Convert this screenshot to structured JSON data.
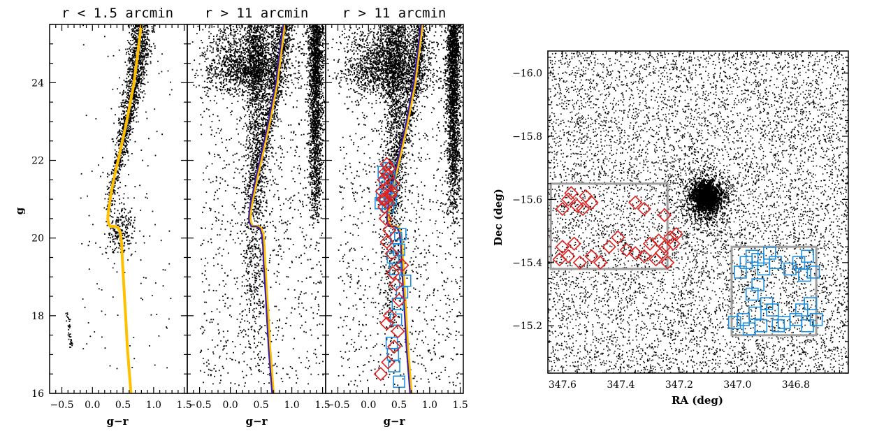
{
  "chart_data": [
    {
      "type": "scatter",
      "panel": "cmd-core",
      "title": "r < 1.5 arcmin",
      "xlabel": "g−r",
      "ylabel": "g",
      "xlim": [
        -0.7,
        1.55
      ],
      "ylim": [
        25.5,
        16
      ],
      "xticks": [
        -0.5,
        0.0,
        0.5,
        1.0,
        1.5
      ],
      "xtick_labels": [
        "−0.5",
        "0.0",
        "0.5",
        "1.0",
        "1.5"
      ],
      "yticks": [
        16,
        18,
        20,
        22,
        24
      ],
      "ytick_labels": [
        "16",
        "18",
        "20",
        "22",
        "24"
      ],
      "series": [
        {
          "name": "stars",
          "marker": "dot",
          "color": "#000000"
        },
        {
          "name": "isochrone",
          "marker": "line",
          "color": "#FFC000",
          "x": [
            0.8,
            0.76,
            0.72,
            0.68,
            0.62,
            0.56,
            0.49,
            0.42,
            0.36,
            0.31,
            0.28,
            0.26,
            0.25,
            0.26,
            0.29,
            0.37,
            0.43,
            0.46,
            0.48,
            0.49,
            0.52,
            0.55,
            0.57,
            0.59,
            0.61,
            0.63
          ],
          "y": [
            25.5,
            25.0,
            24.5,
            24.0,
            23.5,
            23.0,
            22.5,
            22.0,
            21.6,
            21.2,
            20.9,
            20.7,
            20.5,
            20.4,
            20.3,
            20.3,
            20.25,
            20.1,
            19.8,
            19.4,
            18.6,
            17.8,
            17.2,
            16.8,
            16.4,
            16.0
          ]
        }
      ]
    },
    {
      "type": "scatter",
      "panel": "cmd-field",
      "title": "r > 11 arcmin",
      "xlabel": "g−r",
      "xlim": [
        -0.7,
        1.55
      ],
      "ylim": [
        25.5,
        16
      ],
      "xticks": [
        -0.5,
        0.0,
        0.5,
        1.0,
        1.5
      ],
      "xtick_labels": [
        "−0.5",
        "0.0",
        "0.5",
        "1.0",
        "1.5"
      ],
      "yticks": [
        16,
        18,
        20,
        22,
        24
      ],
      "series": [
        {
          "name": "stars",
          "marker": "dot",
          "color": "#000000"
        },
        {
          "name": "isochrone-yellow",
          "marker": "line",
          "color": "#FFC000",
          "x": [
            0.88,
            0.84,
            0.8,
            0.76,
            0.7,
            0.64,
            0.57,
            0.5,
            0.44,
            0.39,
            0.35,
            0.33,
            0.32,
            0.33,
            0.36,
            0.44,
            0.5,
            0.53,
            0.55,
            0.56,
            0.59,
            0.62,
            0.64,
            0.66,
            0.68,
            0.7
          ],
          "y": [
            25.5,
            25.0,
            24.5,
            24.0,
            23.5,
            23.0,
            22.5,
            22.0,
            21.6,
            21.2,
            20.9,
            20.7,
            20.5,
            20.4,
            20.3,
            20.3,
            20.25,
            20.1,
            19.8,
            19.4,
            18.6,
            17.8,
            17.2,
            16.8,
            16.4,
            16.0
          ]
        },
        {
          "name": "isochrone-blue",
          "marker": "line",
          "color": "#3C1FA8",
          "x": [
            0.86,
            0.82,
            0.78,
            0.74,
            0.68,
            0.62,
            0.55,
            0.48,
            0.42,
            0.37,
            0.33,
            0.31,
            0.3,
            0.31,
            0.34,
            0.42,
            0.48,
            0.51,
            0.53,
            0.54,
            0.57,
            0.6,
            0.62,
            0.64,
            0.66,
            0.68
          ],
          "y": [
            25.5,
            25.0,
            24.5,
            24.0,
            23.5,
            23.0,
            22.5,
            22.0,
            21.6,
            21.2,
            20.9,
            20.7,
            20.5,
            20.4,
            20.3,
            20.3,
            20.25,
            20.1,
            19.8,
            19.4,
            18.6,
            17.8,
            17.2,
            16.8,
            16.4,
            16.0
          ]
        }
      ]
    },
    {
      "type": "scatter",
      "panel": "cmd-selected",
      "title": "r > 11 arcmin",
      "xlabel": "g−r",
      "xlim": [
        -0.7,
        1.55
      ],
      "ylim": [
        25.5,
        16
      ],
      "xticks": [
        -0.5,
        0.0,
        0.5,
        1.0,
        1.5
      ],
      "xtick_labels": [
        "−0.5",
        "0.0",
        "0.5",
        "1.0",
        "1.5"
      ],
      "yticks": [
        16,
        18,
        20,
        22,
        24
      ],
      "series": [
        {
          "name": "stars",
          "marker": "dot",
          "color": "#000000"
        },
        {
          "name": "isochrone-yellow",
          "marker": "line",
          "color": "#FFC000"
        },
        {
          "name": "isochrone-blue",
          "marker": "line",
          "color": "#3C1FA8"
        },
        {
          "name": "blue-squares",
          "marker": "square",
          "color": "#1F8FE0",
          "x": [
            0.5,
            0.42,
            0.4,
            0.38,
            0.45,
            0.48,
            0.55,
            0.6,
            0.44,
            0.4,
            0.5,
            0.45,
            0.52,
            0.2,
            0.22,
            0.28,
            0.3,
            0.35,
            0.32,
            0.25,
            0.38,
            0.27,
            0.33,
            0.36
          ],
          "y": [
            16.3,
            16.7,
            17.0,
            17.3,
            17.9,
            18.3,
            18.6,
            18.9,
            19.2,
            19.5,
            19.7,
            20.0,
            20.1,
            20.9,
            21.1,
            21.0,
            21.3,
            21.5,
            20.8,
            21.7,
            21.2,
            21.4,
            21.8,
            21.0
          ]
        },
        {
          "name": "red-diamonds",
          "marker": "diamond",
          "color": "#E0201F",
          "x": [
            0.2,
            0.32,
            0.42,
            0.48,
            0.3,
            0.35,
            0.5,
            0.45,
            0.4,
            0.55,
            0.38,
            0.3,
            0.34,
            0.28,
            0.26,
            0.24,
            0.22,
            0.3,
            0.36,
            0.25,
            0.32,
            0.4,
            0.28,
            0.34,
            0.3,
            0.38,
            0.27,
            0.32
          ],
          "y": [
            16.5,
            16.8,
            17.2,
            17.6,
            17.8,
            18.0,
            18.4,
            18.8,
            19.1,
            19.3,
            19.6,
            19.9,
            20.2,
            20.5,
            20.8,
            21.0,
            21.2,
            21.3,
            21.1,
            21.5,
            21.6,
            21.4,
            21.7,
            21.8,
            21.9,
            21.2,
            21.0,
            20.9
          ]
        }
      ]
    },
    {
      "type": "scatter",
      "panel": "sky-map",
      "xlabel": "RA (deg)",
      "ylabel": "Dec (deg)",
      "xlim": [
        347.65,
        346.62
      ],
      "ylim": [
        -16.07,
        -15.05
      ],
      "xticks": [
        347.6,
        347.4,
        347.2,
        347.0,
        346.8
      ],
      "xtick_labels": [
        "347.6",
        "347.4",
        "347.2",
        "347.0",
        "346.8"
      ],
      "yticks": [
        -15.2,
        -15.4,
        -15.6,
        -15.8,
        -16.0
      ],
      "ytick_labels": [
        "−15.2",
        "−15.4",
        "−15.6",
        "−15.8",
        "−16.0"
      ],
      "cluster_center": [
        347.11,
        -15.61
      ],
      "series": [
        {
          "name": "stars",
          "marker": "dot",
          "color": "#000000"
        },
        {
          "name": "red-diamonds",
          "marker": "diamond",
          "color": "#E0201F",
          "x": [
            347.61,
            347.6,
            347.58,
            347.56,
            347.54,
            347.5,
            347.47,
            347.44,
            347.41,
            347.38,
            347.35,
            347.32,
            347.3,
            347.28,
            347.27,
            347.26,
            347.25,
            347.24,
            347.23,
            347.22,
            347.21,
            347.6,
            347.58,
            347.55,
            347.52,
            347.5,
            347.35,
            347.32,
            347.25,
            347.57,
            347.53
          ],
          "y": [
            -15.41,
            -15.45,
            -15.42,
            -15.46,
            -15.4,
            -15.42,
            -15.4,
            -15.45,
            -15.48,
            -15.44,
            -15.43,
            -15.42,
            -15.46,
            -15.41,
            -15.47,
            -15.43,
            -15.45,
            -15.4,
            -15.48,
            -15.46,
            -15.49,
            -15.57,
            -15.6,
            -15.58,
            -15.61,
            -15.59,
            -15.59,
            -15.57,
            -15.55,
            -15.62,
            -15.57
          ]
        },
        {
          "name": "blue-squares",
          "marker": "square",
          "color": "#1F8FE0",
          "x": [
            347.01,
            346.98,
            346.96,
            346.94,
            346.92,
            346.9,
            346.88,
            346.86,
            346.84,
            346.8,
            346.78,
            346.76,
            346.75,
            346.73,
            346.99,
            346.97,
            346.95,
            346.93,
            346.91,
            346.89,
            346.87,
            346.82,
            346.79,
            346.77,
            346.76,
            346.74,
            346.95,
            346.93
          ],
          "y": [
            -15.21,
            -15.22,
            -15.19,
            -15.24,
            -15.2,
            -15.27,
            -15.25,
            -15.2,
            -15.21,
            -15.22,
            -15.25,
            -15.2,
            -15.27,
            -15.22,
            -15.37,
            -15.4,
            -15.42,
            -15.41,
            -15.38,
            -15.43,
            -15.4,
            -15.38,
            -15.4,
            -15.36,
            -15.42,
            -15.37,
            -15.3,
            -15.33
          ]
        }
      ],
      "boxes": [
        {
          "name": "red-region",
          "color": "#9E9E9E",
          "ra": [
            347.24,
            347.64
          ],
          "dec": [
            -15.65,
            -15.38
          ]
        },
        {
          "name": "blue-region",
          "color": "#9E9E9E",
          "ra": [
            346.73,
            347.02
          ],
          "dec": [
            -15.45,
            -15.17
          ]
        }
      ]
    }
  ]
}
